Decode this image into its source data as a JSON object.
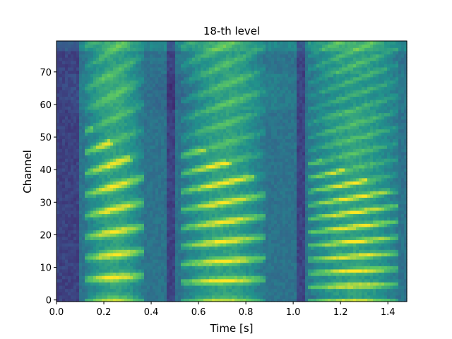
{
  "chart_data": {
    "type": "heatmap",
    "title": "18-th level",
    "xlabel": "Time [s]",
    "ylabel": "Channel",
    "xlim": [
      0.0,
      1.48
    ],
    "ylim": [
      -0.5,
      79.5
    ],
    "x_ticks": [
      0.0,
      0.2,
      0.4,
      0.6,
      0.8,
      1.0,
      1.2,
      1.4
    ],
    "x_tick_labels": [
      "0.0",
      "0.2",
      "0.4",
      "0.6",
      "0.8",
      "1.0",
      "1.2",
      "1.4"
    ],
    "y_ticks": [
      0,
      10,
      20,
      30,
      40,
      50,
      60,
      70
    ],
    "y_tick_labels": [
      "0",
      "10",
      "20",
      "30",
      "40",
      "50",
      "60",
      "70"
    ],
    "colormap": "viridis",
    "colors": {
      "low": "#440154",
      "mid": "#21918c",
      "high": "#fde725"
    },
    "segments": [
      {
        "start": 0.12,
        "end": 0.37,
        "f0_channel": 7.0,
        "band_top": 55
      },
      {
        "start": 0.53,
        "end": 0.88,
        "f0_channel": 6.0,
        "band_top": 50
      },
      {
        "start": 1.06,
        "end": 1.45,
        "f0_channel": 4.5,
        "band_top": 45
      }
    ],
    "silences": [
      {
        "start": 0.0,
        "end": 0.1
      },
      {
        "start": 0.46,
        "end": 0.5
      },
      {
        "start": 1.02,
        "end": 1.05
      }
    ],
    "grid": false
  }
}
